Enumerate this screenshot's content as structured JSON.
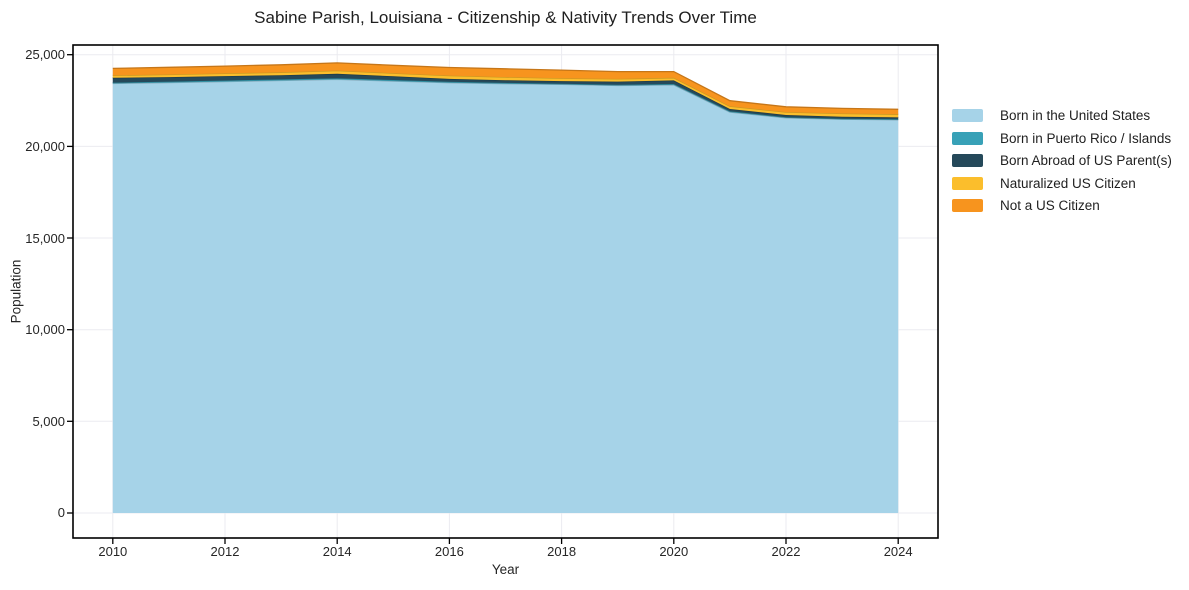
{
  "chart_data": {
    "type": "area",
    "stacked": true,
    "title": "Sabine Parish, Louisiana - Citizenship & Nativity Trends Over Time",
    "xlabel": "Year",
    "ylabel": "Population",
    "x": [
      2010,
      2011,
      2012,
      2013,
      2014,
      2015,
      2016,
      2017,
      2018,
      2019,
      2020,
      2021,
      2022,
      2023,
      2024
    ],
    "series": [
      {
        "name": "Born in the United States",
        "color": "#A6D3E8",
        "values": [
          23430,
          23480,
          23530,
          23590,
          23650,
          23560,
          23470,
          23420,
          23380,
          23320,
          23350,
          21870,
          21560,
          21480,
          21450
        ]
      },
      {
        "name": "Born in Puerto Rico / Islands",
        "color": "#38A1B7",
        "values": [
          50,
          50,
          60,
          60,
          70,
          60,
          50,
          40,
          40,
          40,
          50,
          40,
          30,
          30,
          30
        ]
      },
      {
        "name": "Born Abroad of US Parent(s)",
        "color": "#25495A",
        "values": [
          260,
          250,
          240,
          230,
          240,
          200,
          160,
          150,
          140,
          170,
          200,
          130,
          120,
          110,
          100
        ]
      },
      {
        "name": "Naturalized US Citizen",
        "color": "#FBBE2C",
        "values": [
          130,
          140,
          150,
          160,
          170,
          170,
          180,
          170,
          160,
          150,
          140,
          150,
          160,
          170,
          170
        ]
      },
      {
        "name": "Not a US Citizen",
        "color": "#F7941E",
        "values": [
          380,
          390,
          400,
          410,
          420,
          430,
          440,
          450,
          440,
          400,
          340,
          300,
          290,
          280,
          270
        ]
      }
    ],
    "xticks": [
      2010,
      2012,
      2014,
      2016,
      2018,
      2020,
      2022,
      2024
    ],
    "yticks": [
      0,
      5000,
      10000,
      15000,
      20000,
      25000
    ],
    "ytick_labels": [
      "0",
      "5,000",
      "10,000",
      "15,000",
      "20,000",
      "25,000"
    ],
    "xlim": [
      2009.29,
      2024.71
    ],
    "ylim": [
      -1364,
      25529
    ],
    "grid": true,
    "grid_color": "#ebebf0",
    "spine_color": "#000000",
    "legend_position": "outside-right-top"
  }
}
